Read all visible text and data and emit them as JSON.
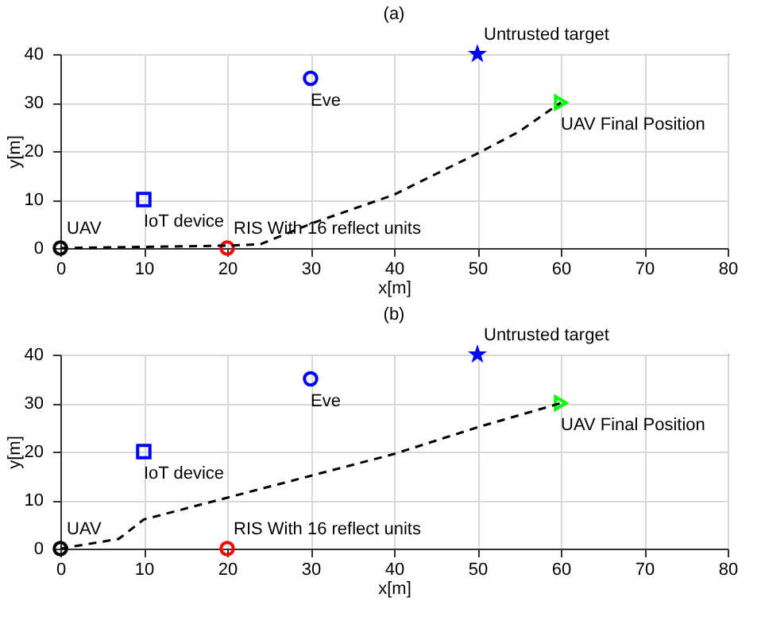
{
  "chart_data": [
    {
      "type": "scatter",
      "title": "(a)",
      "xlabel": "x[m]",
      "ylabel": "y[m]",
      "xlim": [
        0,
        80
      ],
      "ylim": [
        0,
        40
      ],
      "xticks": [
        0,
        10,
        20,
        30,
        40,
        50,
        60,
        70,
        80
      ],
      "yticks": [
        0,
        10,
        20,
        30,
        40
      ],
      "grid": true,
      "legend": false,
      "series": [
        {
          "name": "UAV",
          "color": "#000000",
          "marker": "circle",
          "x": [
            0
          ],
          "values": [
            0
          ]
        },
        {
          "name": "IoT device",
          "color": "#0000ff",
          "marker": "square",
          "x": [
            10
          ],
          "values": [
            10
          ]
        },
        {
          "name": "Eve",
          "color": "#0000ff",
          "marker": "circle",
          "x": [
            30
          ],
          "values": [
            35
          ]
        },
        {
          "name": "Untrusted target",
          "color": "#0000ff",
          "marker": "star",
          "x": [
            50
          ],
          "values": [
            40
          ]
        },
        {
          "name": "UAV Final Position",
          "color": "#00ff00",
          "marker": "triangle",
          "x": [
            60
          ],
          "values": [
            30
          ]
        },
        {
          "name": "RIS With 16 reflect units",
          "color": "#ff0000",
          "marker": "circle",
          "x": [
            20
          ],
          "values": [
            0
          ]
        },
        {
          "type": "line",
          "color": "#000000",
          "line_style": "dashed",
          "x": [
            0,
            20,
            24,
            30,
            40,
            50,
            55,
            60
          ],
          "values": [
            0,
            0.5,
            0.8,
            5,
            11,
            19.5,
            24,
            30
          ]
        }
      ]
    },
    {
      "type": "scatter",
      "title": "(b)",
      "xlabel": "x[m]",
      "ylabel": "y[m]",
      "xlim": [
        0,
        80
      ],
      "ylim": [
        0,
        40
      ],
      "xticks": [
        0,
        10,
        20,
        30,
        40,
        50,
        60,
        70,
        80
      ],
      "yticks": [
        0,
        10,
        20,
        30,
        40
      ],
      "grid": true,
      "legend": false,
      "series": [
        {
          "name": "UAV",
          "color": "#000000",
          "marker": "circle",
          "x": [
            0
          ],
          "values": [
            0
          ]
        },
        {
          "name": "IoT device",
          "color": "#0000ff",
          "marker": "square",
          "x": [
            10
          ],
          "values": [
            20
          ]
        },
        {
          "name": "Eve",
          "color": "#0000ff",
          "marker": "circle",
          "x": [
            30
          ],
          "values": [
            35
          ]
        },
        {
          "name": "Untrusted target",
          "color": "#0000ff",
          "marker": "star",
          "x": [
            50
          ],
          "values": [
            40
          ]
        },
        {
          "name": "UAV Final Position",
          "color": "#00ff00",
          "marker": "triangle",
          "x": [
            60
          ],
          "values": [
            30
          ]
        },
        {
          "name": "RIS With 16 reflect units",
          "color": "#ff0000",
          "marker": "circle",
          "x": [
            20
          ],
          "values": [
            0
          ]
        },
        {
          "type": "line",
          "color": "#000000",
          "line_style": "dashed",
          "x": [
            0,
            7,
            10,
            20,
            30,
            40,
            50,
            60
          ],
          "values": [
            0,
            2,
            6,
            10.5,
            15,
            19.5,
            25,
            30
          ]
        }
      ]
    }
  ]
}
